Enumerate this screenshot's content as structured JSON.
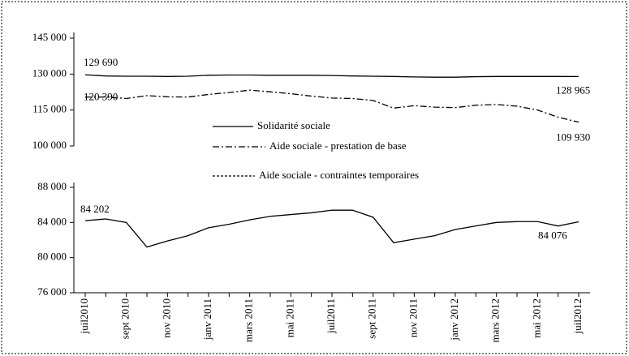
{
  "chart_data": {
    "type": "line",
    "categories": [
      "juil2010",
      null,
      "sept 2010",
      null,
      "nov 2010",
      null,
      "janv 2011",
      null,
      "mars 2011",
      null,
      "mai 2011",
      null,
      "juil2011",
      null,
      "sept 2011",
      null,
      "nov 2011",
      null,
      "janv 2012",
      null,
      "mars 2012",
      null,
      "mai 2012",
      null,
      "juil2012"
    ],
    "ylim": [
      100000,
      145000
    ],
    "yticks": [
      {
        "value": 100000,
        "label": "100 000"
      },
      {
        "value": 115000,
        "label": "115 000"
      },
      {
        "value": 130000,
        "label": "130 000"
      },
      {
        "value": 145000,
        "label": "145 000"
      }
    ],
    "y2lim": [
      76000,
      88000
    ],
    "y2ticks": [
      {
        "value": 76000,
        "label": "76 000"
      },
      {
        "value": 80000,
        "label": "80 000"
      },
      {
        "value": 84000,
        "label": "84 000"
      },
      {
        "value": 88000,
        "label": "88 000"
      }
    ],
    "grid": false,
    "series": [
      {
        "name": "Solidarité sociale",
        "color": "#000000",
        "values": [
          129690,
          129200,
          129100,
          129100,
          129000,
          129100,
          129500,
          129600,
          129600,
          129500,
          129500,
          129500,
          129400,
          129200,
          129100,
          129000,
          128800,
          128700,
          128700,
          128900,
          129000,
          129000,
          129000,
          129000,
          128965
        ],
        "value_labels": [
          "129 690",
          null,
          null,
          null,
          null,
          null,
          null,
          null,
          null,
          null,
          null,
          null,
          null,
          null,
          null,
          null,
          null,
          null,
          null,
          null,
          null,
          null,
          null,
          null,
          "128 965"
        ]
      },
      {
        "name": "Aide sociale - prestation de base",
        "color": "#000000",
        "values": [
          120390,
          120400,
          119800,
          121000,
          120500,
          120400,
          121500,
          122300,
          123300,
          122600,
          121800,
          120800,
          120000,
          119800,
          119000,
          115800,
          116800,
          116200,
          116000,
          117000,
          117300,
          116600,
          115000,
          112000,
          109930
        ],
        "value_labels": [
          "120 390",
          null,
          null,
          null,
          null,
          null,
          null,
          null,
          null,
          null,
          null,
          null,
          null,
          null,
          null,
          null,
          null,
          null,
          null,
          null,
          null,
          null,
          null,
          null,
          "109 930"
        ]
      },
      {
        "name": "Aide sociale - contraintes temporaires",
        "color": "#000000",
        "axis": "y2",
        "values": [
          84202,
          84400,
          84000,
          81200,
          81900,
          82500,
          83400,
          83800,
          84300,
          84700,
          84900,
          85100,
          85400,
          85400,
          84600,
          81700,
          82100,
          82500,
          83200,
          83600,
          84000,
          84100,
          84100,
          83600,
          84076
        ],
        "value_labels": [
          "84 202",
          null,
          null,
          null,
          null,
          null,
          null,
          null,
          null,
          null,
          null,
          null,
          null,
          null,
          null,
          null,
          null,
          null,
          null,
          null,
          null,
          null,
          null,
          null,
          "84 076"
        ]
      }
    ]
  }
}
